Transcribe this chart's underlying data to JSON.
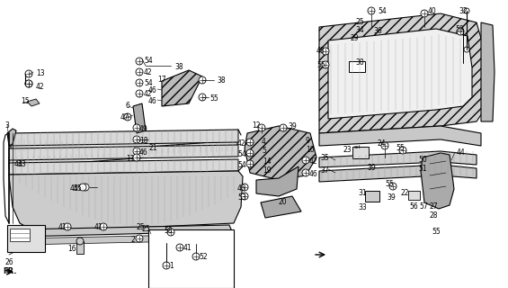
{
  "bg_color": "#ffffff",
  "fig_width": 5.65,
  "fig_height": 3.2,
  "dpi": 100,
  "black": "#000000",
  "gray": "#555555",
  "light_gray": "#aaaaaa",
  "hatch_color": "#333333"
}
